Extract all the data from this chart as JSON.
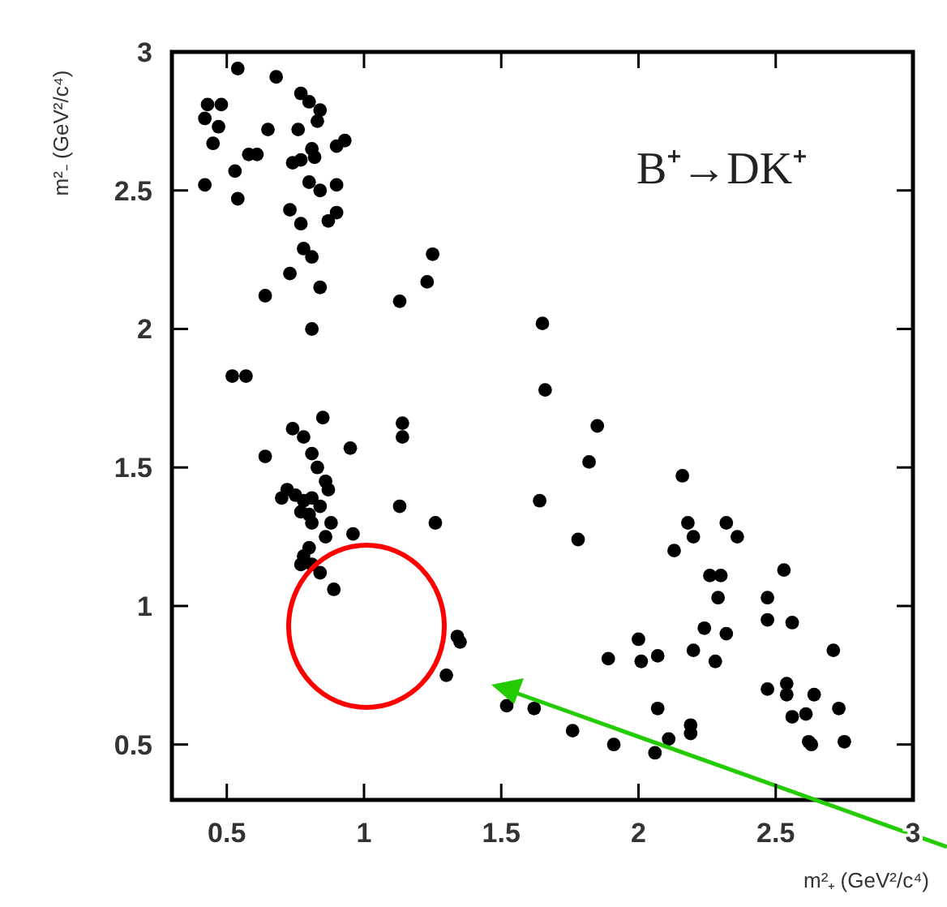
{
  "chart_data": {
    "type": "scatter",
    "title": "B⁺→DK⁺",
    "xlabel": "m²₊ (GeV²/c⁴)",
    "ylabel": "m²₋ (GeV²/c⁴)",
    "xlim": [
      0.3,
      3
    ],
    "ylim": [
      0.3,
      3
    ],
    "xticks": [
      0.5,
      1,
      1.5,
      2,
      2.5,
      3
    ],
    "yticks": [
      0.5,
      1,
      1.5,
      2,
      2.5,
      3
    ],
    "grid": false,
    "marker": "circle",
    "series": [
      {
        "color": "#000000",
        "x": [
          0.54,
          0.68,
          0.77,
          0.43,
          0.48,
          0.42,
          0.47,
          0.45,
          0.42,
          0.53,
          0.54,
          0.58,
          0.61,
          0.65,
          0.76,
          0.8,
          0.84,
          0.83,
          0.74,
          0.77,
          0.81,
          0.82,
          0.9,
          0.93,
          0.8,
          0.84,
          0.9,
          0.73,
          0.77,
          0.87,
          0.9,
          0.78,
          0.81,
          0.73,
          0.84,
          0.64,
          0.81,
          1.13,
          1.23,
          1.25,
          0.52,
          0.57,
          0.85,
          0.74,
          0.78,
          1.14,
          1.14,
          1.65,
          1.66,
          1.85,
          0.64,
          0.81,
          0.95,
          0.83,
          0.86,
          0.87,
          0.72,
          0.7,
          0.75,
          0.78,
          0.81,
          0.84,
          0.8,
          0.77,
          0.81,
          0.88,
          0.86,
          0.96,
          0.8,
          0.78,
          0.77,
          0.81,
          0.84,
          0.89,
          1.13,
          1.26,
          1.34,
          1.35,
          1.3,
          1.82,
          1.64,
          1.78,
          2.16,
          2.18,
          2.2,
          2.13,
          2.32,
          2.36,
          2.26,
          2.3,
          2.29,
          2.24,
          2.32,
          2.2,
          2.28,
          2.53,
          2.47,
          2.47,
          2.56,
          2.71,
          2.0,
          1.89,
          2.01,
          2.07,
          1.52,
          1.62,
          1.76,
          1.91,
          2.07,
          2.11,
          2.06,
          2.19,
          2.19,
          2.47,
          2.54,
          2.54,
          2.56,
          2.61,
          2.64,
          2.62,
          2.63,
          2.73,
          2.75
        ],
        "values": [
          2.94,
          2.91,
          2.85,
          2.81,
          2.81,
          2.76,
          2.73,
          2.67,
          2.52,
          2.57,
          2.47,
          2.63,
          2.63,
          2.72,
          2.72,
          2.82,
          2.79,
          2.75,
          2.6,
          2.61,
          2.65,
          2.62,
          2.66,
          2.68,
          2.53,
          2.5,
          2.52,
          2.43,
          2.38,
          2.39,
          2.42,
          2.29,
          2.26,
          2.2,
          2.15,
          2.12,
          2.0,
          2.1,
          2.17,
          2.27,
          1.83,
          1.83,
          1.68,
          1.64,
          1.61,
          1.66,
          1.61,
          2.02,
          1.78,
          1.65,
          1.54,
          1.55,
          1.57,
          1.5,
          1.45,
          1.42,
          1.42,
          1.39,
          1.4,
          1.38,
          1.39,
          1.36,
          1.33,
          1.34,
          1.3,
          1.3,
          1.25,
          1.26,
          1.21,
          1.18,
          1.15,
          1.15,
          1.12,
          1.06,
          1.36,
          1.3,
          0.89,
          0.87,
          0.75,
          1.52,
          1.38,
          1.24,
          1.47,
          1.3,
          1.25,
          1.2,
          1.3,
          1.25,
          1.11,
          1.11,
          1.03,
          0.92,
          0.9,
          0.84,
          0.8,
          1.13,
          1.03,
          0.95,
          0.94,
          0.84,
          0.88,
          0.81,
          0.8,
          0.82,
          0.64,
          0.63,
          0.55,
          0.5,
          0.63,
          0.52,
          0.47,
          0.57,
          0.54,
          0.7,
          0.72,
          0.68,
          0.6,
          0.61,
          0.68,
          0.51,
          0.5,
          0.63,
          0.51
        ]
      }
    ]
  }
}
